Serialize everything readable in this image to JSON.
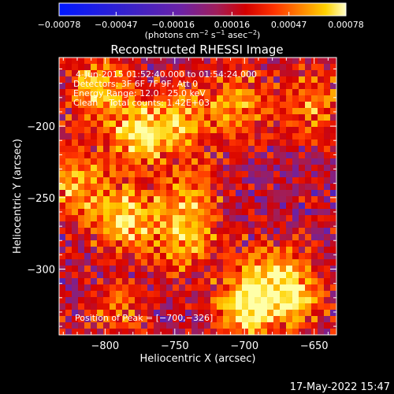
{
  "chart_data": {
    "type": "heatmap",
    "title": "Reconstructed RHESSI Image",
    "xlabel": "Heliocentric X (arcsec)",
    "ylabel": "Heliocentric Y (arcsec)",
    "xlim": [
      -833,
      -634
    ],
    "ylim": [
      -346,
      -152
    ],
    "x_ticks": [
      -800,
      -750,
      -700,
      -650
    ],
    "y_ticks": [
      -200,
      -250,
      -300
    ],
    "x_tick_labels": [
      "−800",
      "−750",
      "−700",
      "−650"
    ],
    "y_tick_labels": [
      "−200",
      "−250",
      "−300"
    ],
    "colorbar": {
      "range": [
        -0.00078,
        0.00078
      ],
      "ticks": [
        -0.00078,
        -0.00047,
        -0.00016,
        0.00016,
        0.00047,
        0.00078
      ],
      "tick_labels": [
        "−0.00078",
        "−0.00047",
        "−0.00016",
        "0.00016",
        "0.00047",
        "0.00078"
      ],
      "label_parts": {
        "a": "(photons cm",
        "a_sup": "−2",
        "b": " s",
        "b_sup": "−1",
        "c": " asec",
        "c_sup": "−2",
        "d": ")"
      }
    },
    "info_lines": [
      "4-Jun-2015 01:52:40.000 to 01:54:24.000",
      "Detectors: 3F 6F 7F 9F, Att 0",
      "Energy Range: 12.0 - 25.0 keV",
      "Clean    Total counts: 1.42E+03"
    ],
    "peak_label": "Position of Peak = [−700,−326]",
    "peak": [
      -700,
      -326
    ],
    "bright_sources": [
      {
        "x": -805,
        "y": -175,
        "strength": 0.8
      },
      {
        "x": -775,
        "y": -205,
        "strength": 0.9
      },
      {
        "x": -745,
        "y": -195,
        "strength": 0.7
      },
      {
        "x": -705,
        "y": -185,
        "strength": 0.7
      },
      {
        "x": -650,
        "y": -185,
        "strength": 0.6
      },
      {
        "x": -820,
        "y": -240,
        "strength": 0.7
      },
      {
        "x": -785,
        "y": -265,
        "strength": 0.9
      },
      {
        "x": -745,
        "y": -280,
        "strength": 0.7
      },
      {
        "x": -740,
        "y": -250,
        "strength": 0.6
      },
      {
        "x": -700,
        "y": -326,
        "strength": 1.0
      },
      {
        "x": -665,
        "y": -320,
        "strength": 0.8
      },
      {
        "x": -680,
        "y": -300,
        "strength": 0.6
      },
      {
        "x": -790,
        "y": -330,
        "strength": 0.4
      }
    ],
    "grid": false
  },
  "footer": {
    "timestamp": "17-May-2022 15:47"
  },
  "colors": {
    "background": "#000000",
    "text": "#ffffff",
    "colormap": [
      "#0018ff",
      "#3a22c8",
      "#6a22a8",
      "#a01e5a",
      "#d40000",
      "#ff3300",
      "#ff8a00",
      "#ffd200",
      "#ffffa8"
    ]
  }
}
